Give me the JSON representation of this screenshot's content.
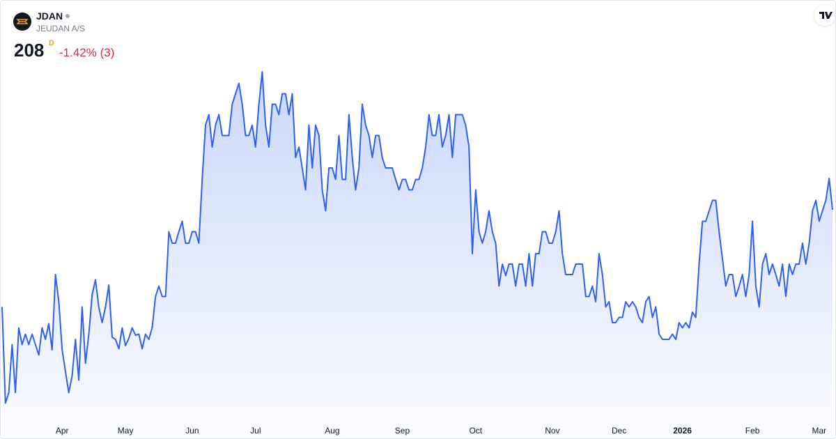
{
  "chart_data": {
    "type": "area",
    "title": "JDAN",
    "subtitle": "JEUDAN A/S",
    "badge": "D",
    "change": "-1.42% (3)",
    "color": "#2d5ff2",
    "values": [
      198.7,
      189.5,
      190.5,
      195.1,
      190.5,
      196.7,
      195.1,
      196.1,
      195.1,
      196.1,
      195.1,
      194.1,
      196.7,
      195.6,
      197.1,
      194.6,
      201.8,
      199.2,
      194.6,
      192.5,
      190.5,
      192.1,
      195.6,
      191.7,
      198.7,
      193.3,
      196.1,
      199.9,
      201.3,
      198.7,
      197.2,
      198.7,
      200.8,
      195.8,
      195.6,
      194.7,
      196.7,
      195.0,
      195.7,
      196.7,
      196.0,
      196.1,
      194.7,
      196.1,
      195.6,
      196.7,
      199.7,
      200.7,
      199.7,
      199.7,
      205.9,
      204.8,
      204.8,
      205.9,
      206.9,
      204.8,
      204.8,
      205.9,
      205.9,
      204.8,
      210.9,
      216.1,
      217.1,
      214.0,
      216.1,
      217.1,
      215.1,
      215.1,
      215.1,
      218.1,
      219.1,
      220.1,
      218.1,
      215.1,
      215.1,
      216.1,
      214.0,
      218.1,
      221.2,
      216.1,
      214.0,
      218.1,
      218.1,
      217.1,
      219.1,
      219.1,
      217.1,
      219.1,
      213.0,
      214.0,
      212.0,
      209.9,
      216.1,
      212.0,
      216.1,
      215.1,
      209.9,
      207.9,
      212.0,
      212.0,
      210.9,
      215.1,
      210.9,
      210.9,
      217.1,
      213.0,
      209.9,
      212.0,
      218.1,
      216.1,
      215.1,
      213.0,
      215.1,
      215.1,
      213.0,
      212.0,
      212.0,
      212.0,
      210.9,
      209.9,
      210.9,
      210.9,
      209.9,
      209.9,
      210.9,
      210.9,
      212.0,
      214.0,
      217.1,
      215.1,
      215.1,
      217.1,
      214.0,
      215.1,
      217.1,
      213.0,
      217.1,
      217.1,
      217.1,
      216.1,
      214.0,
      203.8,
      209.9,
      205.9,
      204.8,
      205.9,
      207.9,
      205.9,
      204.8,
      200.7,
      202.8,
      201.7,
      202.8,
      202.8,
      200.7,
      202.8,
      202.8,
      200.7,
      203.8,
      200.7,
      203.8,
      203.8,
      205.9,
      205.9,
      204.8,
      204.8,
      205.9,
      207.9,
      203.8,
      201.8,
      201.8,
      201.8,
      202.8,
      202.8,
      202.8,
      199.7,
      199.7,
      200.7,
      199.2,
      203.8,
      201.8,
      198.7,
      199.2,
      197.2,
      197.2,
      197.7,
      197.7,
      199.2,
      198.7,
      199.2,
      198.7,
      197.7,
      197.2,
      199.2,
      199.7,
      197.7,
      198.7,
      196.1,
      195.6,
      195.6,
      195.6,
      196.1,
      195.6,
      197.2,
      196.7,
      197.2,
      196.7,
      198.2,
      197.7,
      202.8,
      206.9,
      206.9,
      207.9,
      208.9,
      208.9,
      205.9,
      203.3,
      200.7,
      201.8,
      201.8,
      199.7,
      200.7,
      201.8,
      199.7,
      201.8,
      206.9,
      200.7,
      198.7,
      202.8,
      203.8,
      201.8,
      202.8,
      201.8,
      200.7,
      202.8,
      199.7,
      202.8,
      201.8,
      202.8,
      202.8,
      204.8,
      202.8,
      204.8,
      207.9,
      208.9,
      206.9,
      207.9,
      208.9,
      211,
      208
    ],
    "xlim": [
      0,
      249
    ],
    "xticks": [
      {
        "value": 18,
        "label": "Apr"
      },
      {
        "value": 37,
        "label": "May"
      },
      {
        "value": 57,
        "label": "Jun"
      },
      {
        "value": 76,
        "label": "Jul"
      },
      {
        "value": 99,
        "label": "Aug"
      },
      {
        "value": 120,
        "label": "Sep"
      },
      {
        "value": 142,
        "label": "Oct"
      },
      {
        "value": 165,
        "label": "Nov"
      },
      {
        "value": 185,
        "label": "Dec"
      },
      {
        "value": 204,
        "label": "2026"
      },
      {
        "value": 225,
        "label": "Feb"
      },
      {
        "value": 245,
        "label": "Mar"
      }
    ],
    "ylim": [
      188,
      228
    ]
  }
}
